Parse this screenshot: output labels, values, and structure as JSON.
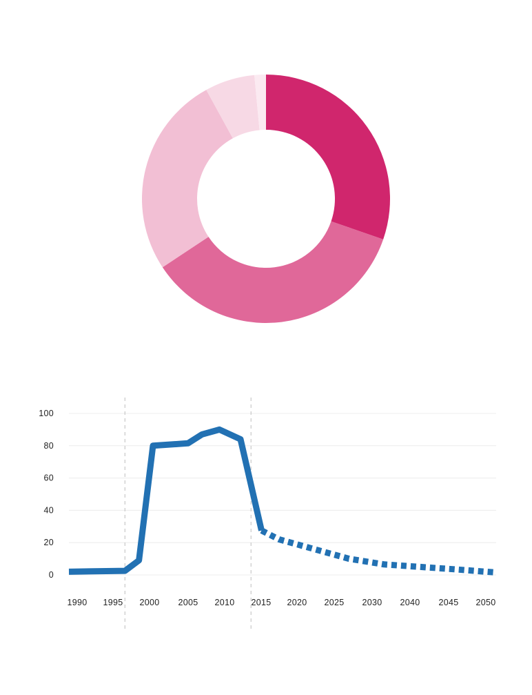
{
  "colors": {
    "donut": [
      "#d0266d",
      "#e06899",
      "#f2bfd4",
      "#f7d9e5",
      "#fbeaf1"
    ],
    "line": "#2271b3",
    "grid": "#ececec",
    "guide": "#c8c8c8"
  },
  "chart_data": [
    {
      "type": "pie",
      "variant": "donut",
      "slices": [
        {
          "value": 30.3
        },
        {
          "value": 35.4
        },
        {
          "value": 26.3
        },
        {
          "value": 6.5
        },
        {
          "value": 1.5
        }
      ]
    },
    {
      "type": "line",
      "xlim": [
        1990,
        2051
      ],
      "ylim": [
        0,
        100
      ],
      "x_ticks": [
        "1990",
        "1995",
        "2000",
        "2005",
        "2010",
        "2015",
        "2020",
        "2025",
        "2030",
        "2040",
        "2045",
        "2050"
      ],
      "y_ticks": [
        "0",
        "20",
        "40",
        "60",
        "80",
        "100"
      ],
      "grid": true,
      "reference_lines_x": [
        1998,
        2016
      ],
      "series": [
        {
          "style": "solid",
          "points": [
            [
              1990,
              2
            ],
            [
              1998,
              2.5
            ],
            [
              2000,
              9
            ],
            [
              2002,
              80
            ],
            [
              2007,
              81.5
            ],
            [
              2009,
              87
            ],
            [
              2011.5,
              90
            ],
            [
              2014.5,
              84
            ],
            [
              2017.5,
              27.5
            ]
          ]
        },
        {
          "style": "dashed",
          "points": [
            [
              2017.5,
              27.5
            ],
            [
              2020,
              22
            ],
            [
              2025,
              16
            ],
            [
              2030,
              10
            ],
            [
              2035,
              6.5
            ],
            [
              2040,
              5
            ],
            [
              2045,
              3.5
            ],
            [
              2051,
              1.5
            ]
          ]
        }
      ]
    }
  ]
}
